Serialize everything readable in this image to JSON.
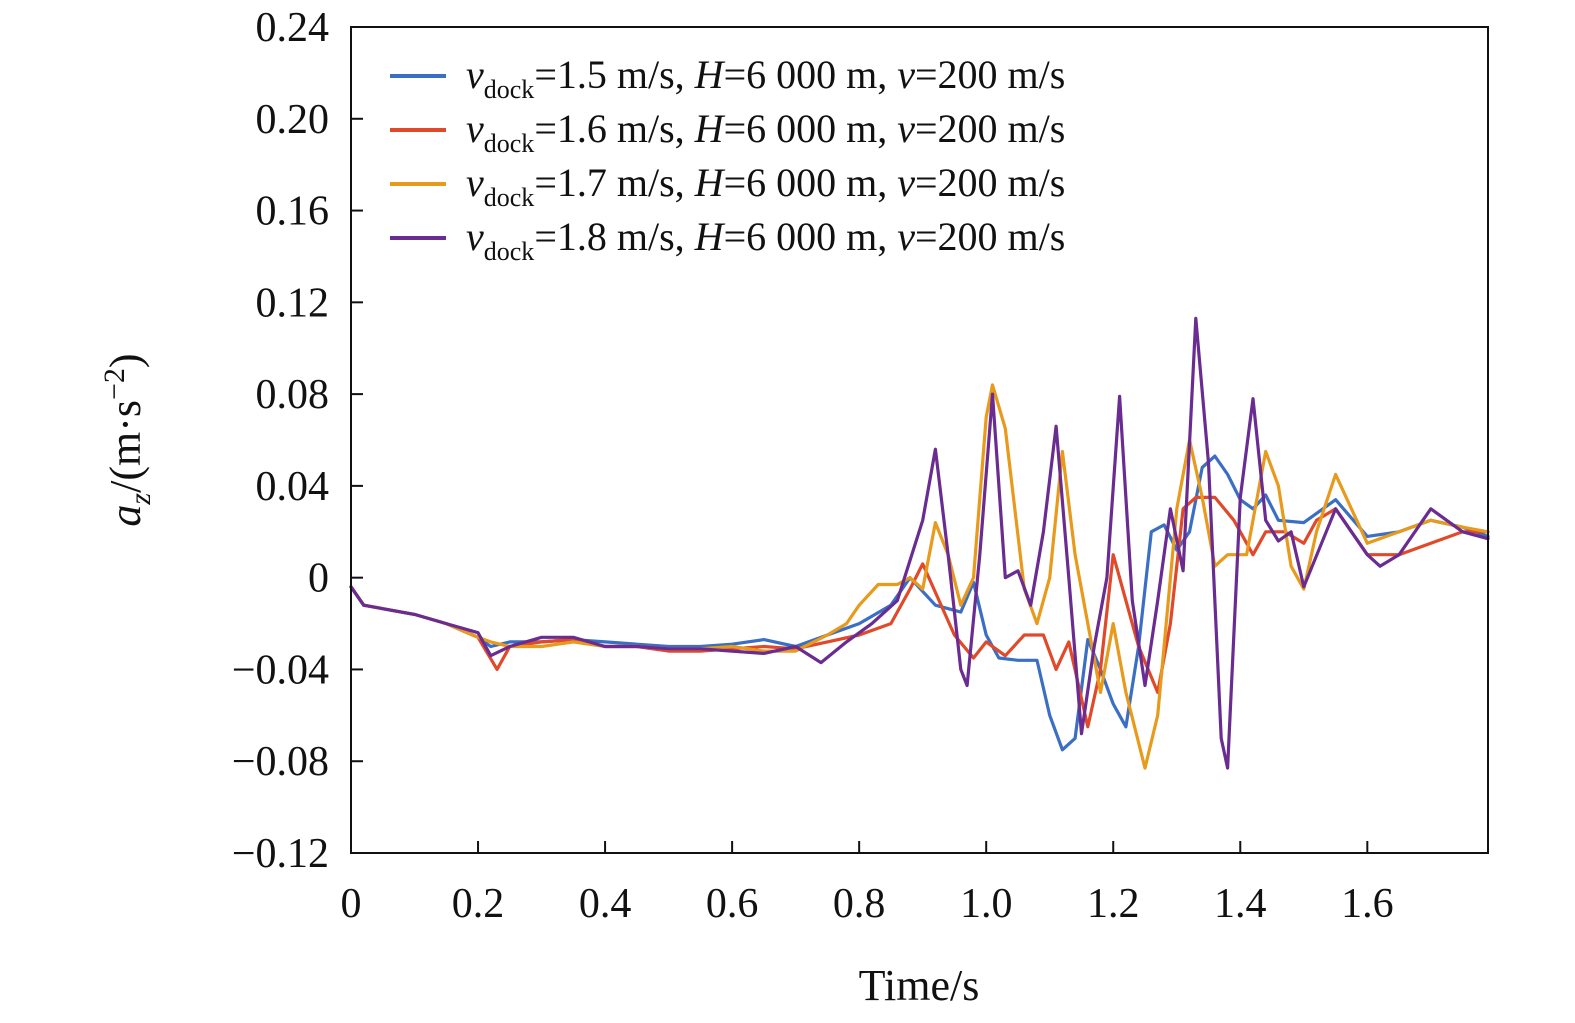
{
  "chart_data": {
    "type": "line",
    "xlabel": "Time/s",
    "ylabel": {
      "main": "a",
      "sub": "z",
      "unit_open": "/(m·s",
      "unit_sup": "−2",
      "unit_close": ")"
    },
    "xlim": [
      0,
      1.79
    ],
    "ylim": [
      -0.12,
      0.24
    ],
    "x_ticks": [
      0,
      0.2,
      0.4,
      0.6,
      0.8,
      1.0,
      1.2,
      1.4,
      1.6
    ],
    "x_tick_labels": [
      "0",
      "0.2",
      "0.4",
      "0.6",
      "0.8",
      "1.0",
      "1.2",
      "1.4",
      "1.6"
    ],
    "y_ticks": [
      -0.12,
      -0.08,
      -0.04,
      0,
      0.04,
      0.08,
      0.12,
      0.16,
      0.2,
      0.24
    ],
    "y_tick_labels": [
      "−0.12",
      "−0.08",
      "−0.04",
      "0",
      "0.04",
      "0.08",
      "0.12",
      "0.16",
      "0.20",
      "0.24"
    ],
    "grid": false,
    "legend_position": "top-left",
    "series": [
      {
        "name": "vdock=1.5 m/s, H=6 000 m, v=200 m/s",
        "legend": {
          "v": "v",
          "sub": "dock",
          "rest1": "=1.5 m/s, ",
          "h": "H",
          "rest2": "=6 000 m, ",
          "v2": "v",
          "rest3": "=200 m/s"
        },
        "color": "#3a6fc4",
        "x": [
          0,
          0.02,
          0.1,
          0.15,
          0.2,
          0.22,
          0.25,
          0.3,
          0.35,
          0.4,
          0.45,
          0.5,
          0.55,
          0.6,
          0.65,
          0.7,
          0.75,
          0.8,
          0.85,
          0.88,
          0.92,
          0.96,
          0.98,
          1.0,
          1.02,
          1.05,
          1.08,
          1.1,
          1.12,
          1.14,
          1.16,
          1.18,
          1.2,
          1.22,
          1.24,
          1.26,
          1.28,
          1.3,
          1.32,
          1.34,
          1.36,
          1.38,
          1.4,
          1.42,
          1.44,
          1.46,
          1.5,
          1.55,
          1.6,
          1.65,
          1.7,
          1.75,
          1.79
        ],
        "y": [
          -0.004,
          -0.012,
          -0.016,
          -0.02,
          -0.026,
          -0.03,
          -0.028,
          -0.028,
          -0.027,
          -0.028,
          -0.029,
          -0.03,
          -0.03,
          -0.029,
          -0.027,
          -0.03,
          -0.025,
          -0.02,
          -0.012,
          0.0,
          -0.012,
          -0.015,
          -0.002,
          -0.025,
          -0.035,
          -0.036,
          -0.036,
          -0.06,
          -0.075,
          -0.07,
          -0.027,
          -0.04,
          -0.055,
          -0.065,
          -0.03,
          0.02,
          0.023,
          0.012,
          0.02,
          0.048,
          0.053,
          0.045,
          0.034,
          0.03,
          0.036,
          0.025,
          0.024,
          0.034,
          0.018,
          0.02,
          0.025,
          0.022,
          0.018
        ]
      },
      {
        "name": "vdock=1.6 m/s, H=6 000 m, v=200 m/s",
        "legend": {
          "v": "v",
          "sub": "dock",
          "rest1": "=1.6 m/s, ",
          "h": "H",
          "rest2": "=6 000 m, ",
          "v2": "v",
          "rest3": "=200 m/s"
        },
        "color": "#e04a2a",
        "x": [
          0,
          0.02,
          0.1,
          0.15,
          0.2,
          0.23,
          0.25,
          0.3,
          0.35,
          0.4,
          0.45,
          0.5,
          0.55,
          0.6,
          0.65,
          0.7,
          0.75,
          0.8,
          0.85,
          0.88,
          0.9,
          0.95,
          0.98,
          1.0,
          1.03,
          1.06,
          1.09,
          1.11,
          1.13,
          1.16,
          1.18,
          1.2,
          1.22,
          1.24,
          1.27,
          1.29,
          1.31,
          1.33,
          1.36,
          1.39,
          1.42,
          1.44,
          1.47,
          1.5,
          1.52,
          1.55,
          1.6,
          1.65,
          1.7,
          1.75,
          1.79
        ],
        "y": [
          -0.004,
          -0.012,
          -0.016,
          -0.02,
          -0.026,
          -0.04,
          -0.03,
          -0.028,
          -0.027,
          -0.03,
          -0.03,
          -0.032,
          -0.032,
          -0.031,
          -0.03,
          -0.031,
          -0.028,
          -0.025,
          -0.02,
          -0.005,
          0.006,
          -0.025,
          -0.035,
          -0.028,
          -0.034,
          -0.025,
          -0.025,
          -0.04,
          -0.028,
          -0.065,
          -0.04,
          0.01,
          -0.01,
          -0.03,
          -0.05,
          -0.02,
          0.03,
          0.035,
          0.035,
          0.025,
          0.01,
          0.02,
          0.02,
          0.015,
          0.025,
          0.03,
          0.01,
          0.01,
          0.015,
          0.02,
          0.02
        ]
      },
      {
        "name": "vdock=1.7 m/s, H=6 000 m, v=200 m/s",
        "legend": {
          "v": "v",
          "sub": "dock",
          "rest1": "=1.7 m/s, ",
          "h": "H",
          "rest2": "=6 000 m, ",
          "v2": "v",
          "rest3": "=200 m/s"
        },
        "color": "#e89a1c",
        "x": [
          0,
          0.02,
          0.1,
          0.15,
          0.2,
          0.22,
          0.25,
          0.3,
          0.35,
          0.4,
          0.45,
          0.5,
          0.55,
          0.6,
          0.65,
          0.7,
          0.75,
          0.78,
          0.8,
          0.83,
          0.86,
          0.88,
          0.9,
          0.92,
          0.94,
          0.96,
          0.98,
          1.0,
          1.01,
          1.03,
          1.06,
          1.08,
          1.1,
          1.12,
          1.14,
          1.16,
          1.18,
          1.2,
          1.22,
          1.25,
          1.27,
          1.3,
          1.32,
          1.34,
          1.36,
          1.38,
          1.41,
          1.44,
          1.46,
          1.48,
          1.5,
          1.52,
          1.55,
          1.6,
          1.65,
          1.7,
          1.75,
          1.79
        ],
        "y": [
          -0.004,
          -0.012,
          -0.016,
          -0.02,
          -0.026,
          -0.028,
          -0.03,
          -0.03,
          -0.028,
          -0.03,
          -0.03,
          -0.031,
          -0.031,
          -0.03,
          -0.032,
          -0.032,
          -0.025,
          -0.02,
          -0.012,
          -0.003,
          -0.003,
          0.0,
          -0.005,
          0.024,
          0.01,
          -0.012,
          0.0,
          0.07,
          0.084,
          0.065,
          -0.005,
          -0.02,
          0.0,
          0.055,
          0.01,
          -0.02,
          -0.05,
          -0.02,
          -0.05,
          -0.083,
          -0.06,
          0.03,
          0.06,
          0.035,
          0.005,
          0.01,
          0.01,
          0.055,
          0.04,
          0.005,
          -0.005,
          0.02,
          0.045,
          0.015,
          0.02,
          0.025,
          0.022,
          0.02
        ]
      },
      {
        "name": "vdock=1.8 m/s, H=6 000 m, v=200 m/s",
        "legend": {
          "v": "v",
          "sub": "dock",
          "rest1": "=1.8 m/s, ",
          "h": "H",
          "rest2": "=6 000 m, ",
          "v2": "v",
          "rest3": "=200 m/s"
        },
        "color": "#6a2c91",
        "x": [
          0,
          0.02,
          0.1,
          0.15,
          0.2,
          0.22,
          0.25,
          0.3,
          0.35,
          0.4,
          0.45,
          0.5,
          0.55,
          0.6,
          0.65,
          0.7,
          0.74,
          0.78,
          0.82,
          0.86,
          0.9,
          0.92,
          0.94,
          0.96,
          0.97,
          0.99,
          1.01,
          1.03,
          1.05,
          1.07,
          1.09,
          1.11,
          1.13,
          1.15,
          1.17,
          1.19,
          1.21,
          1.23,
          1.25,
          1.27,
          1.29,
          1.31,
          1.33,
          1.35,
          1.37,
          1.38,
          1.4,
          1.42,
          1.44,
          1.46,
          1.48,
          1.5,
          1.55,
          1.6,
          1.62,
          1.65,
          1.7,
          1.75,
          1.79
        ],
        "y": [
          -0.004,
          -0.012,
          -0.016,
          -0.02,
          -0.024,
          -0.034,
          -0.03,
          -0.026,
          -0.026,
          -0.03,
          -0.03,
          -0.031,
          -0.031,
          -0.032,
          -0.033,
          -0.03,
          -0.037,
          -0.028,
          -0.02,
          -0.01,
          0.025,
          0.056,
          0.01,
          -0.04,
          -0.047,
          0.01,
          0.08,
          0.0,
          0.003,
          -0.012,
          0.02,
          0.066,
          0.0,
          -0.068,
          -0.03,
          0.0,
          0.079,
          -0.01,
          -0.047,
          -0.01,
          0.03,
          0.003,
          0.113,
          0.05,
          -0.07,
          -0.083,
          0.035,
          0.078,
          0.025,
          0.016,
          0.02,
          -0.004,
          0.03,
          0.01,
          0.005,
          0.01,
          0.03,
          0.02,
          0.017
        ]
      }
    ]
  }
}
